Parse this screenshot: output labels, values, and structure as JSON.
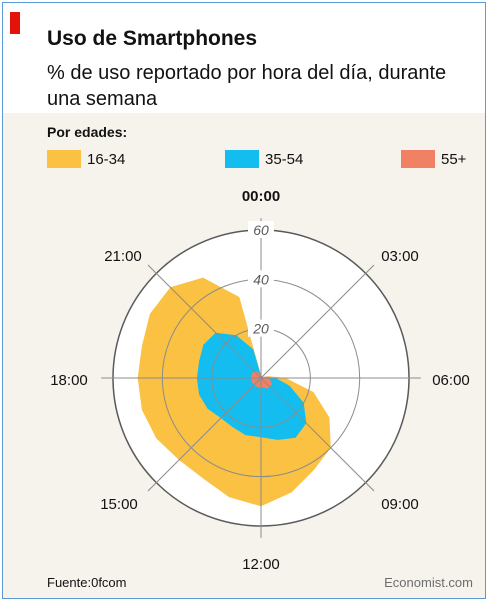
{
  "header": {
    "title": "Uso de Smartphones",
    "subtitle": "% de uso reportado por hora del día, durante una semana"
  },
  "legend": {
    "title": "Por edades:",
    "items": [
      {
        "label": "16-34",
        "color": "#fac142"
      },
      {
        "label": "35-54",
        "color": "#14bdf0"
      },
      {
        "label": "55+",
        "color": "#f08164"
      }
    ]
  },
  "footer": {
    "source": "Fuente:0fcom",
    "brand": "Economist.com"
  },
  "chart_data": {
    "type": "area",
    "polar": true,
    "radial_ticks": [
      "20",
      "40",
      "60"
    ],
    "r_max": 60,
    "hour_labels": [
      "00:00",
      "03:00",
      "06:00",
      "09:00",
      "12:00",
      "15:00",
      "18:00",
      "21:00"
    ],
    "hours": [
      0,
      1,
      2,
      3,
      4,
      5,
      6,
      7,
      8,
      9,
      10,
      11,
      12,
      13,
      14,
      15,
      16,
      17,
      18,
      19,
      20,
      21,
      22,
      23
    ],
    "series": [
      {
        "name": "16-34",
        "color": "#fac142",
        "values": [
          1,
          0,
          0,
          0,
          0,
          3,
          10,
          22,
          32,
          40,
          43,
          48,
          52,
          50,
          47,
          47,
          49,
          50,
          50,
          50,
          52,
          52,
          47,
          34
        ]
      },
      {
        "name": "35-54",
        "color": "#14bdf0",
        "values": [
          1,
          0,
          0,
          0,
          0,
          2,
          6,
          12,
          20,
          26,
          28,
          26,
          24,
          24,
          23,
          23,
          25,
          26,
          26,
          26,
          27,
          26,
          20,
          12
        ]
      },
      {
        "name": "55+",
        "color": "#f08164",
        "values": [
          1,
          1,
          1,
          1,
          1,
          2,
          3,
          4,
          5,
          5,
          5,
          4,
          4,
          4,
          4,
          4,
          4,
          4,
          4,
          4,
          4,
          4,
          3,
          2
        ]
      }
    ]
  }
}
